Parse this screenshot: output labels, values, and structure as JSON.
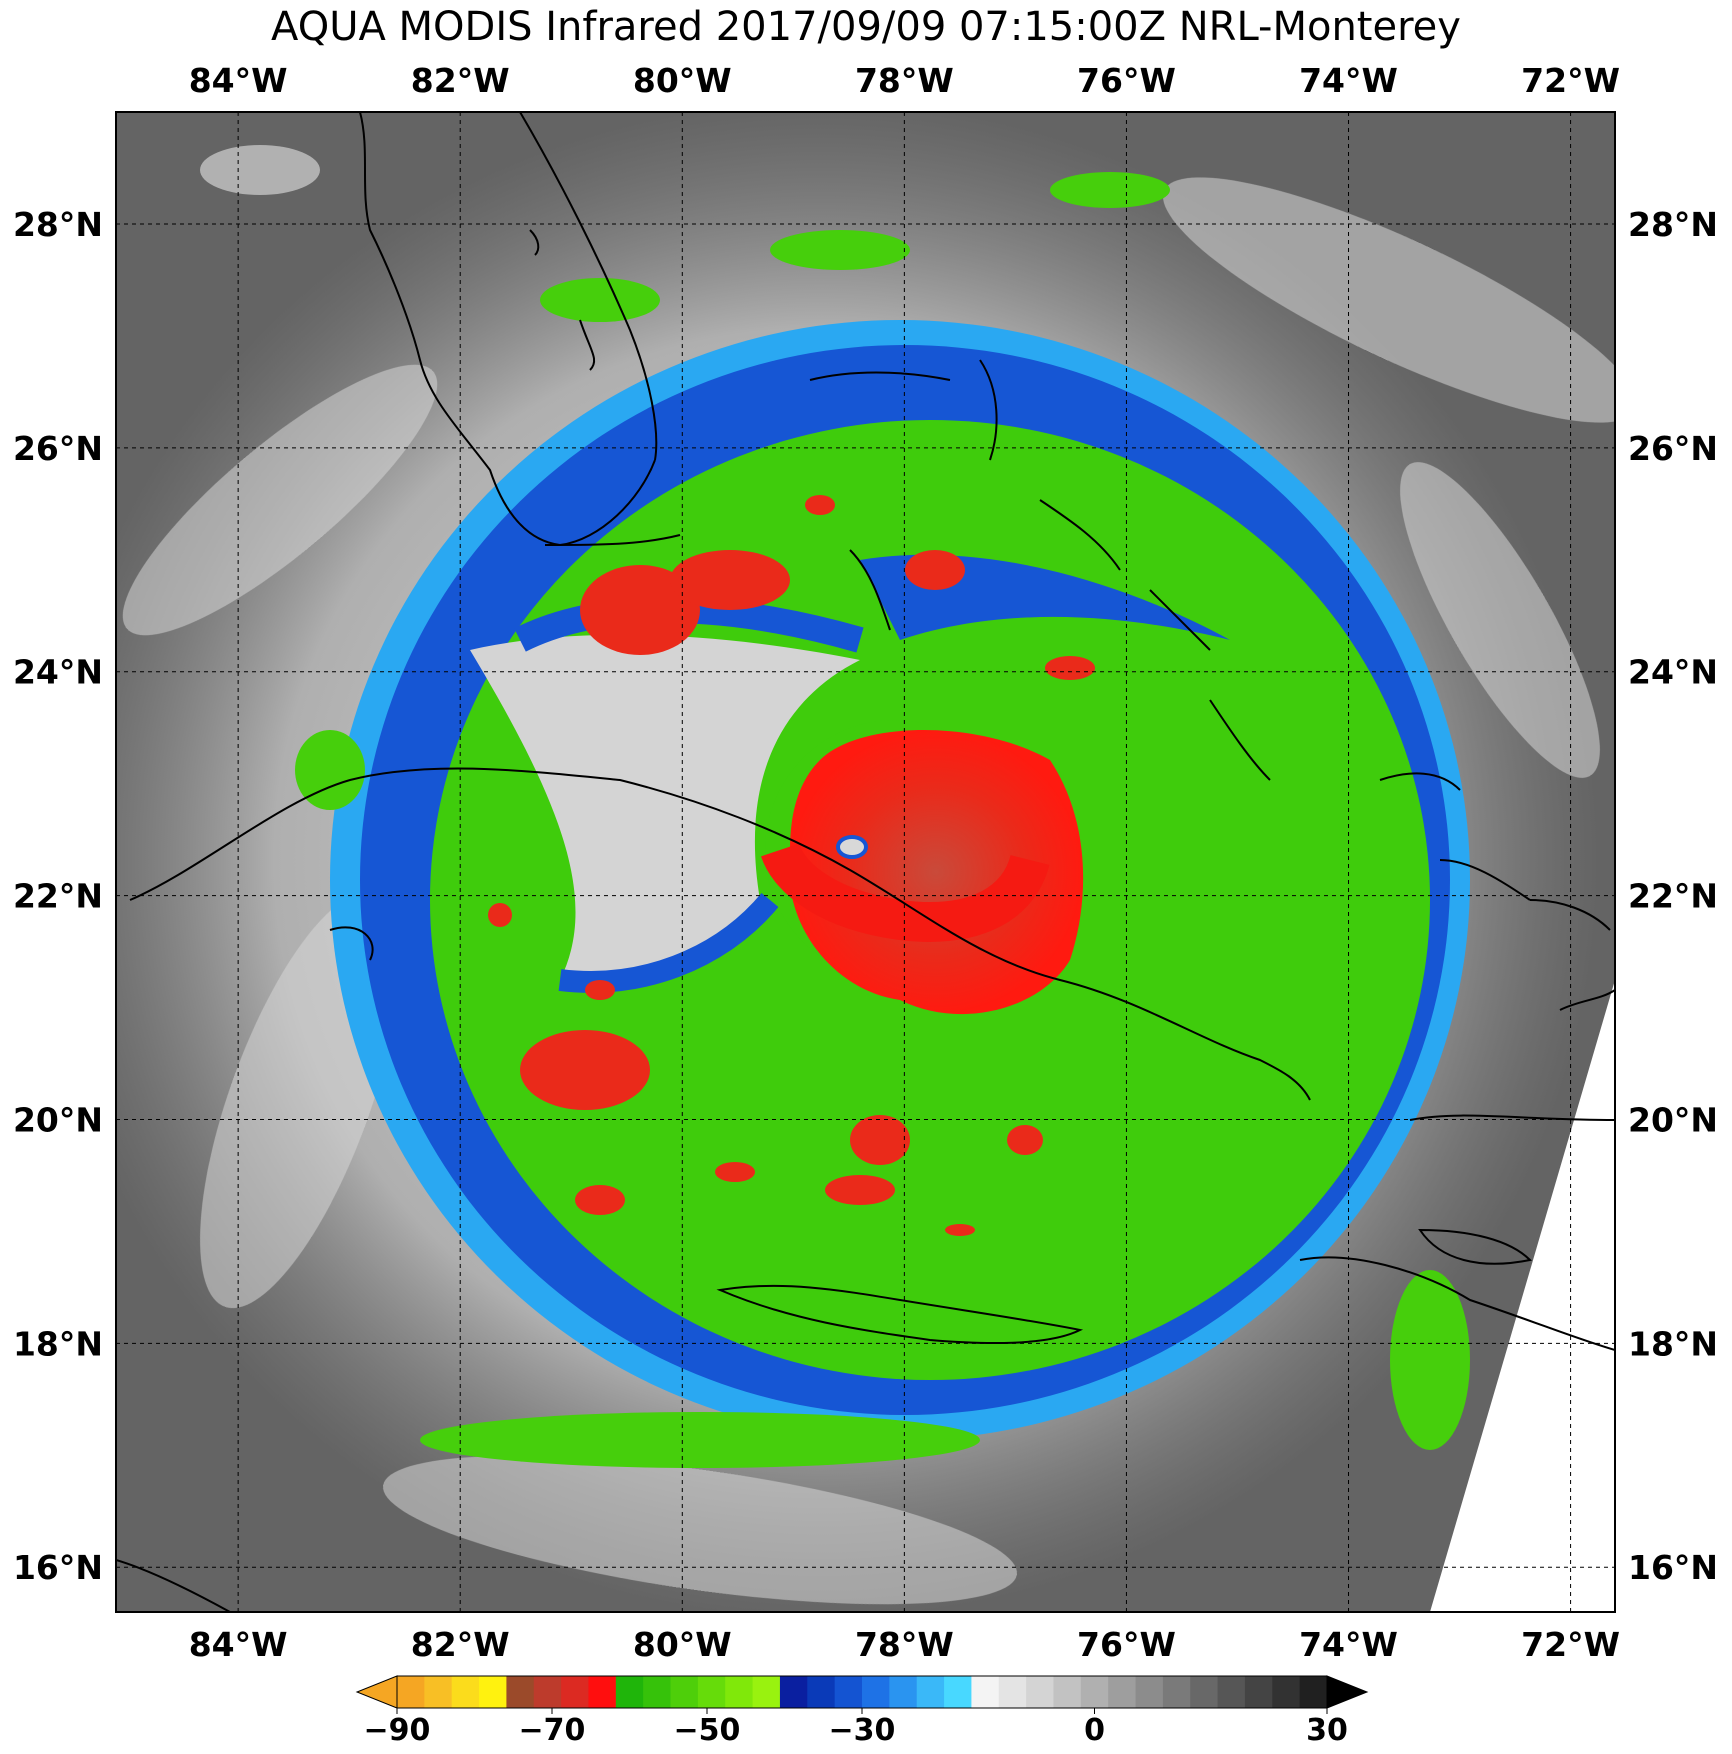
{
  "title": "AQUA MODIS Infrared 2017/09/09 07:15:00Z NRL-Monterey",
  "map": {
    "lon_range": [
      -85.1,
      -71.6
    ],
    "lat_range": [
      15.6,
      29.0
    ],
    "lon_ticks": [
      {
        "value": -84,
        "label": "84°W"
      },
      {
        "value": -82,
        "label": "82°W"
      },
      {
        "value": -80,
        "label": "80°W"
      },
      {
        "value": -78,
        "label": "78°W"
      },
      {
        "value": -76,
        "label": "76°W"
      },
      {
        "value": -74,
        "label": "74°W"
      },
      {
        "value": -72,
        "label": "72°W"
      }
    ],
    "lat_ticks": [
      {
        "value": 28,
        "label": "28°N"
      },
      {
        "value": 26,
        "label": "26°N"
      },
      {
        "value": 24,
        "label": "24°N"
      },
      {
        "value": 22,
        "label": "22°N"
      },
      {
        "value": 20,
        "label": "20°N"
      },
      {
        "value": 18,
        "label": "18°N"
      },
      {
        "value": 16,
        "label": "16°N"
      }
    ],
    "gridlines": "dashed",
    "storm_center": {
      "lon": -78.0,
      "lat": 22.0
    }
  },
  "colorbar": {
    "min": -90,
    "max": 30,
    "ticks": [
      {
        "value": -90,
        "label": "−90"
      },
      {
        "value": -70,
        "label": "−70"
      },
      {
        "value": -50,
        "label": "−50"
      },
      {
        "value": -30,
        "label": "−30"
      },
      {
        "value": 0,
        "label": "0"
      },
      {
        "value": 30,
        "label": "30"
      }
    ],
    "colors": [
      "#f5a623",
      "#f8bf25",
      "#fbdc1c",
      "#fff20f",
      "#9b4a2a",
      "#bd3b2c",
      "#dc2a22",
      "#ff0e0e",
      "#1fb50a",
      "#36c20a",
      "#4ecf0a",
      "#66dc0a",
      "#80e80a",
      "#99f20f",
      "#0a1fa0",
      "#0a3ab8",
      "#1454d2",
      "#1e72e6",
      "#2a94f0",
      "#3ab8f8",
      "#48d8ff",
      "#f4f4f4",
      "#e4e4e4",
      "#d4d4d4",
      "#c2c2c2",
      "#b0b0b0",
      "#9e9e9e",
      "#8c8c8c",
      "#7a7a7a",
      "#686868",
      "#565656",
      "#444444",
      "#323232",
      "#202020"
    ],
    "low_extend_color": "#f5a623",
    "high_extend_color": "#000000"
  },
  "colors": {
    "background_gray": "#5f5f5f",
    "cirrus_white": "#e0e0e0",
    "cloud_blue": "#1656d4",
    "cloud_cyan": "#2aa8f2",
    "cloud_green": "#3fcc0c",
    "cloud_red": "#f51a12",
    "coastline": "#000000"
  }
}
